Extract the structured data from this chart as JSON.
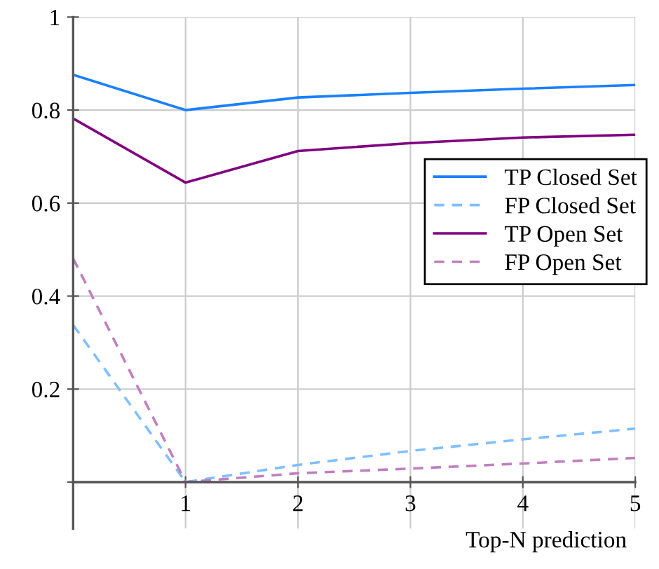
{
  "chart_data": {
    "type": "line",
    "xlabel": "Top-N prediction",
    "x": [
      0,
      1,
      2,
      3,
      4,
      5
    ],
    "series": [
      {
        "name": "TP Closed Set",
        "color": "#1a80ff",
        "line_style": "solid",
        "values": [
          0.876,
          0.8,
          0.827,
          0.837,
          0.846,
          0.854
        ]
      },
      {
        "name": "FP Closed Set",
        "color": "#80bfff",
        "line_style": "dashed",
        "values": [
          0.338,
          0.0,
          0.037,
          0.067,
          0.092,
          0.115
        ]
      },
      {
        "name": "TP Open Set",
        "color": "#800080",
        "line_style": "solid",
        "values": [
          0.782,
          0.644,
          0.712,
          0.729,
          0.741,
          0.747
        ]
      },
      {
        "name": "FP Open Set",
        "color": "#bf80bf",
        "line_style": "dashed",
        "values": [
          0.481,
          0.0,
          0.019,
          0.029,
          0.04,
          0.052
        ]
      }
    ],
    "xlim": [
      0,
      5
    ],
    "ylim": [
      -0.1,
      1
    ],
    "xticks": [
      {
        "value": 0,
        "label": null
      },
      1,
      2,
      3,
      4,
      5
    ],
    "yticks": [
      {
        "value": 0,
        "label": null
      },
      0.2,
      0.4,
      0.6,
      0.8,
      1
    ],
    "grid": true,
    "legend": "center right",
    "marker": "none"
  }
}
